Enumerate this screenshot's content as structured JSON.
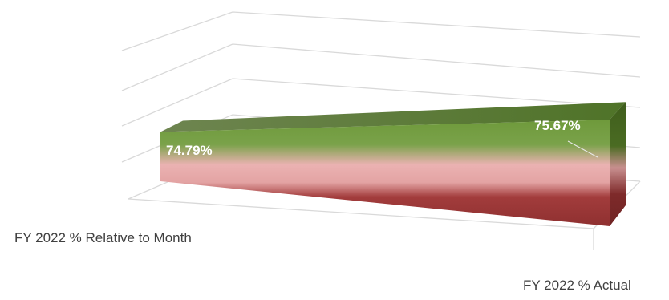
{
  "chart_data": {
    "type": "area",
    "categories": [
      "FY 2022 % Relative to Month",
      "FY 2022 % Actual"
    ],
    "series": [
      {
        "values": [
          74.79,
          75.67
        ],
        "labels": [
          "74.79%",
          "75.67%"
        ]
      }
    ],
    "grid": true,
    "legend": "none",
    "colors": {
      "top_green": "#6f9a3c",
      "top_green_dark": "#4a6b22",
      "mid_pink": "#ebb2b2",
      "bottom_red": "#943535",
      "side_dark": "#3f5c1d",
      "side_red": "#7e2a2a",
      "grid": "#d9d9d9"
    }
  }
}
